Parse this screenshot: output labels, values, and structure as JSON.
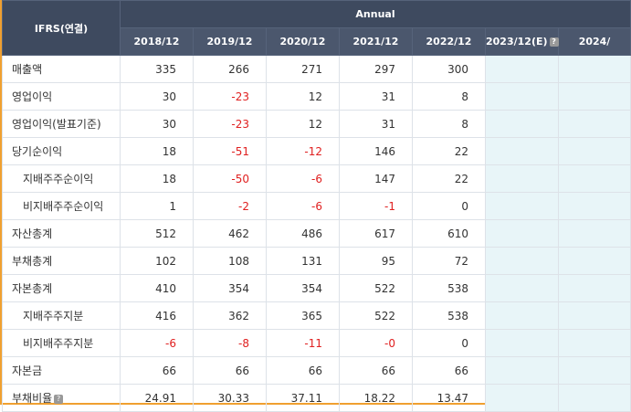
{
  "header": {
    "corner": "IFRS(연결)",
    "group": "Annual",
    "columns": [
      {
        "label": "2018/12"
      },
      {
        "label": "2019/12"
      },
      {
        "label": "2020/12"
      },
      {
        "label": "2021/12"
      },
      {
        "label": "2022/12"
      },
      {
        "label": "2023/12(E)",
        "help": true,
        "estimate": true
      },
      {
        "label": "2024/",
        "estimate": true
      }
    ]
  },
  "rows": [
    {
      "label": "매출액",
      "indent": false,
      "values": [
        "335",
        "266",
        "271",
        "297",
        "300"
      ]
    },
    {
      "label": "영업이익",
      "indent": false,
      "values": [
        "30",
        "-23",
        "12",
        "31",
        "8"
      ]
    },
    {
      "label": "영업이익(발표기준)",
      "indent": false,
      "values": [
        "30",
        "-23",
        "12",
        "31",
        "8"
      ]
    },
    {
      "label": "당기순이익",
      "indent": false,
      "values": [
        "18",
        "-51",
        "-12",
        "146",
        "22"
      ]
    },
    {
      "label": "지배주주순이익",
      "indent": true,
      "values": [
        "18",
        "-50",
        "-6",
        "147",
        "22"
      ]
    },
    {
      "label": "비지배주주순이익",
      "indent": true,
      "values": [
        "1",
        "-2",
        "-6",
        "-1",
        "0"
      ]
    },
    {
      "label": "자산총계",
      "indent": false,
      "values": [
        "512",
        "462",
        "486",
        "617",
        "610"
      ]
    },
    {
      "label": "부채총계",
      "indent": false,
      "values": [
        "102",
        "108",
        "131",
        "95",
        "72"
      ]
    },
    {
      "label": "자본총계",
      "indent": false,
      "values": [
        "410",
        "354",
        "354",
        "522",
        "538"
      ]
    },
    {
      "label": "지배주주지분",
      "indent": true,
      "values": [
        "416",
        "362",
        "365",
        "522",
        "538"
      ]
    },
    {
      "label": "비지배주주지분",
      "indent": true,
      "values": [
        "-6",
        "-8",
        "-11",
        "-0",
        "0"
      ]
    },
    {
      "label": "자본금",
      "indent": false,
      "values": [
        "66",
        "66",
        "66",
        "66",
        "66"
      ]
    },
    {
      "label": "부채비율",
      "indent": false,
      "help": true,
      "values": [
        "24.91",
        "30.33",
        "37.11",
        "18.22",
        "13.47"
      ]
    }
  ]
}
